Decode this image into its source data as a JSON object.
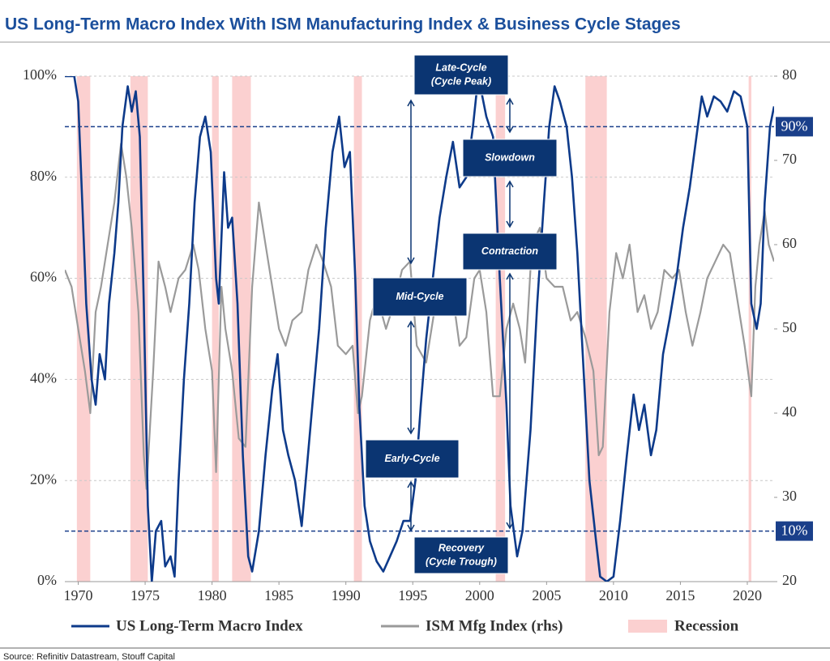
{
  "chart_data": {
    "type": "line",
    "title": "US Long-Term Macro Index With ISM Manufacturing Index & Business Cycle Stages",
    "source": "Source: Refinitiv Datastream, Stouff Capital",
    "xlim": [
      1969,
      2022
    ],
    "xticks": [
      1970,
      1975,
      1980,
      1985,
      1990,
      1995,
      2000,
      2005,
      2010,
      2015,
      2020
    ],
    "ylim": [
      0,
      100
    ],
    "yticks": [
      {
        "value": 0,
        "label": "0%"
      },
      {
        "value": 20,
        "label": "20%"
      },
      {
        "value": 40,
        "label": "40%"
      },
      {
        "value": 60,
        "label": "60%"
      },
      {
        "value": 80,
        "label": "80%"
      },
      {
        "value": 100,
        "label": "100%"
      }
    ],
    "y2lim": [
      20,
      80
    ],
    "y2ticks": [
      20,
      30,
      40,
      50,
      60,
      70,
      80
    ],
    "grid": true,
    "hlines": [
      {
        "value": 90,
        "label": "90%"
      },
      {
        "value": 10,
        "label": "10%"
      }
    ],
    "hline_color": "#1a3f8a",
    "recessions": {
      "name": "Recession",
      "color": "#fbd0d0",
      "periods": [
        [
          1969.9,
          1970.9
        ],
        [
          1973.9,
          1975.2
        ],
        [
          1980.0,
          1980.5
        ],
        [
          1981.5,
          1982.9
        ],
        [
          1990.6,
          1991.2
        ],
        [
          2001.2,
          2001.9
        ],
        [
          2007.9,
          2009.5
        ],
        [
          2020.1,
          2020.3
        ]
      ]
    },
    "annotations": [
      [
        "Late-Cycle",
        "(Cycle Peak)"
      ],
      [
        "Slowdown"
      ],
      [
        "Contraction"
      ],
      [
        "Mid-Cycle"
      ],
      [
        "Early-Cycle"
      ],
      [
        "Recovery",
        "(Cycle Trough)"
      ]
    ],
    "annotation_color": "#0b3572",
    "series": [
      {
        "name": "US Long-Term Macro Index",
        "color": "#0d3a8a",
        "x": [
          1969.0,
          1969.7,
          1970.0,
          1970.3,
          1970.6,
          1971.0,
          1971.3,
          1971.6,
          1972.0,
          1972.3,
          1972.7,
          1973.0,
          1973.3,
          1973.7,
          1974.0,
          1974.3,
          1974.6,
          1974.9,
          1975.2,
          1975.5,
          1975.8,
          1976.2,
          1976.5,
          1976.9,
          1977.2,
          1977.5,
          1977.9,
          1978.3,
          1978.7,
          1979.1,
          1979.5,
          1979.9,
          1980.3,
          1980.5,
          1980.9,
          1981.2,
          1981.5,
          1981.9,
          1982.3,
          1982.7,
          1983.0,
          1983.5,
          1984.0,
          1984.5,
          1984.9,
          1985.3,
          1985.7,
          1986.2,
          1986.7,
          1987.0,
          1987.5,
          1988.0,
          1988.5,
          1989.0,
          1989.5,
          1989.9,
          1990.3,
          1990.7,
          1991.0,
          1991.4,
          1991.8,
          1992.3,
          1992.8,
          1993.3,
          1993.8,
          1994.3,
          1994.8,
          1995.2,
          1995.6,
          1996.0,
          1996.5,
          1997.0,
          1997.5,
          1998.0,
          1998.5,
          1999.0,
          1999.5,
          1999.9,
          2000.5,
          2001.0,
          2001.5,
          2002.0,
          2002.3,
          2002.8,
          2003.2,
          2003.8,
          2004.3,
          2004.8,
          2005.2,
          2005.6,
          2006.0,
          2006.5,
          2006.9,
          2007.3,
          2007.8,
          2008.2,
          2008.7,
          2009.0,
          2009.5,
          2010.0,
          2010.5,
          2011.0,
          2011.5,
          2011.9,
          2012.3,
          2012.8,
          2013.2,
          2013.7,
          2014.2,
          2014.7,
          2015.2,
          2015.7,
          2016.2,
          2016.6,
          2017.0,
          2017.5,
          2018.0,
          2018.5,
          2019.0,
          2019.5,
          2020.0,
          2020.3,
          2020.7,
          2021.0,
          2021.3,
          2021.7,
          2022.0
        ],
        "values": [
          100,
          100,
          95,
          75,
          55,
          40,
          35,
          45,
          40,
          55,
          65,
          75,
          90,
          98,
          93,
          97,
          88,
          55,
          15,
          0,
          10,
          12,
          3,
          5,
          1,
          20,
          40,
          55,
          75,
          88,
          92,
          85,
          60,
          55,
          81,
          70,
          72,
          55,
          25,
          5,
          2,
          10,
          25,
          38,
          45,
          30,
          25,
          20,
          11,
          20,
          35,
          50,
          70,
          85,
          92,
          82,
          85,
          60,
          35,
          15,
          8,
          4,
          2,
          5,
          8,
          12,
          12,
          20,
          35,
          48,
          60,
          72,
          80,
          87,
          78,
          80,
          90,
          100,
          92,
          88,
          60,
          35,
          15,
          5,
          10,
          30,
          55,
          75,
          90,
          98,
          95,
          90,
          80,
          65,
          40,
          20,
          8,
          1,
          0,
          1,
          12,
          25,
          37,
          30,
          35,
          25,
          30,
          45,
          52,
          60,
          70,
          78,
          88,
          96,
          92,
          96,
          95,
          93,
          97,
          96,
          90,
          55,
          50,
          55,
          75,
          90,
          94
        ]
      },
      {
        "name": "ISM Mfg Index (rhs)",
        "color": "#9a9a9a",
        "axis": "y2",
        "x": [
          1969.0,
          1969.5,
          1970.0,
          1970.5,
          1970.9,
          1971.3,
          1971.7,
          1972.2,
          1972.7,
          1973.2,
          1973.6,
          1974.0,
          1974.5,
          1974.9,
          1975.1,
          1975.6,
          1976.0,
          1976.5,
          1976.9,
          1977.5,
          1978.0,
          1978.6,
          1979.0,
          1979.5,
          1980.0,
          1980.3,
          1980.7,
          1981.0,
          1981.5,
          1982.0,
          1982.5,
          1983.0,
          1983.5,
          1984.0,
          1984.5,
          1985.0,
          1985.5,
          1986.0,
          1986.7,
          1987.2,
          1987.8,
          1988.3,
          1988.9,
          1989.4,
          1990.0,
          1990.5,
          1990.9,
          1991.2,
          1991.8,
          1992.3,
          1993.0,
          1993.6,
          1994.2,
          1994.8,
          1995.3,
          1996.0,
          1996.6,
          1997.3,
          1997.9,
          1998.5,
          1999.0,
          1999.6,
          2000.0,
          2000.5,
          2001.0,
          2001.5,
          2002.0,
          2002.5,
          2003.0,
          2003.4,
          2003.9,
          2004.5,
          2005.0,
          2005.6,
          2006.2,
          2006.8,
          2007.3,
          2007.9,
          2008.5,
          2008.9,
          2009.2,
          2009.7,
          2010.2,
          2010.7,
          2011.2,
          2011.8,
          2012.3,
          2012.8,
          2013.3,
          2013.8,
          2014.4,
          2014.9,
          2015.4,
          2015.9,
          2016.5,
          2017.0,
          2017.6,
          2018.2,
          2018.7,
          2019.2,
          2019.8,
          2020.3,
          2020.6,
          2020.9,
          2021.3,
          2021.6,
          2022.0
        ],
        "values": [
          57,
          55,
          50,
          45,
          40,
          52,
          55,
          60,
          65,
          72,
          68,
          62,
          52,
          35,
          31,
          45,
          58,
          55,
          52,
          56,
          57,
          60,
          57,
          50,
          45,
          33,
          55,
          50,
          45,
          37,
          36,
          55,
          65,
          60,
          55,
          50,
          48,
          51,
          52,
          57,
          60,
          58,
          55,
          48,
          47,
          48,
          40,
          42,
          51,
          54,
          50,
          53,
          57,
          58,
          48,
          46,
          52,
          56,
          55,
          48,
          49,
          56,
          57,
          52,
          42,
          42,
          50,
          53,
          50,
          46,
          60,
          62,
          56,
          55,
          55,
          51,
          52,
          49,
          45,
          35,
          36,
          52,
          59,
          56,
          60,
          52,
          54,
          50,
          52,
          57,
          56,
          57,
          52,
          48,
          52,
          56,
          58,
          60,
          59,
          54,
          48,
          42,
          55,
          60,
          64,
          60,
          58
        ]
      }
    ]
  }
}
